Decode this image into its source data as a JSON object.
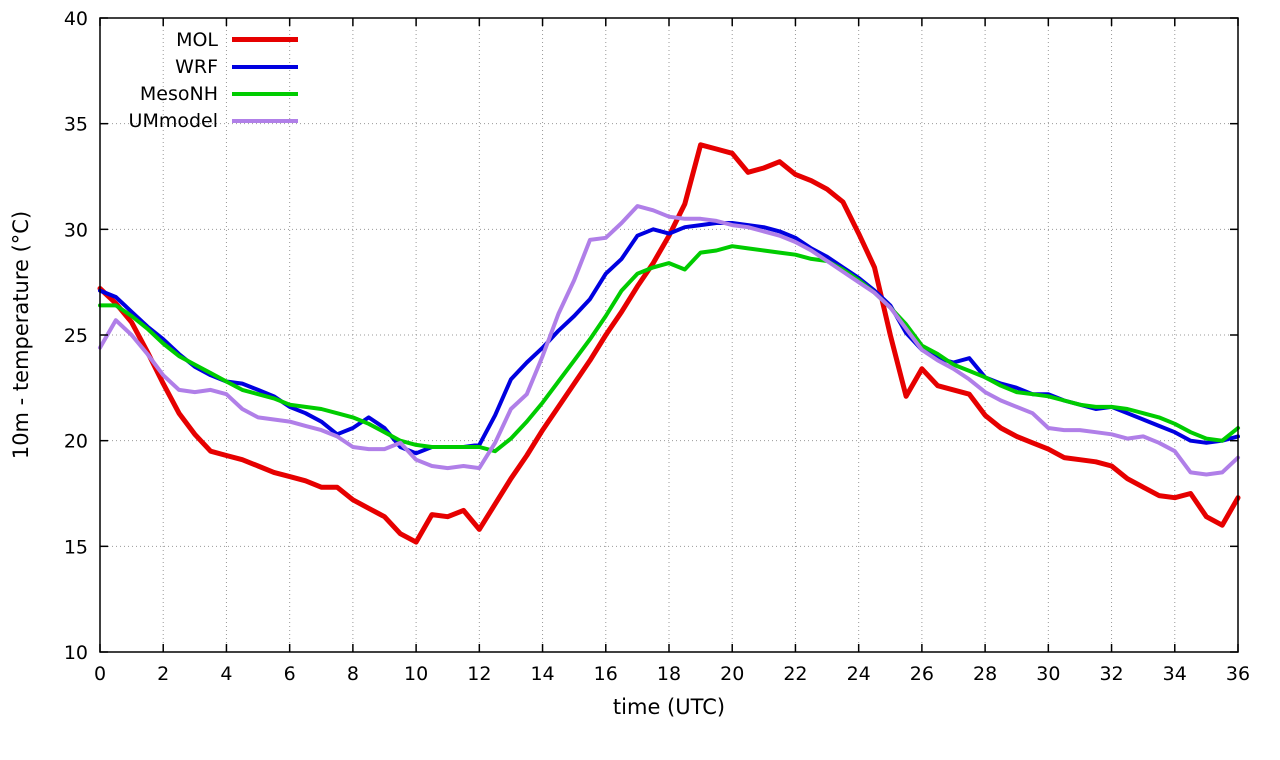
{
  "chart_data": {
    "type": "line",
    "title": "",
    "xlabel": "time (UTC)",
    "ylabel": "10m - temperature (°C)",
    "xlim": [
      0,
      36
    ],
    "ylim": [
      10,
      40
    ],
    "xticks": [
      0,
      2,
      4,
      6,
      8,
      10,
      12,
      14,
      16,
      18,
      20,
      22,
      24,
      26,
      28,
      30,
      32,
      34,
      36
    ],
    "yticks": [
      10,
      15,
      20,
      25,
      30,
      35,
      40
    ],
    "grid": true,
    "grid_style": "dotted",
    "legend_position": "top-left",
    "x": [
      0,
      0.5,
      1,
      1.5,
      2,
      2.5,
      3,
      3.5,
      4,
      4.5,
      5,
      5.5,
      6,
      6.5,
      7,
      7.5,
      8,
      8.5,
      9,
      9.5,
      10,
      10.5,
      11,
      11.5,
      12,
      12.5,
      13,
      13.5,
      14,
      14.5,
      15,
      15.5,
      16,
      16.5,
      17,
      17.5,
      18,
      18.5,
      19,
      19.5,
      20,
      20.5,
      21,
      21.5,
      22,
      22.5,
      23,
      23.5,
      24,
      24.5,
      25,
      25.5,
      26,
      26.5,
      27,
      27.5,
      28,
      28.5,
      29,
      29.5,
      30,
      30.5,
      31,
      31.5,
      32,
      32.5,
      33,
      33.5,
      34,
      34.5,
      35,
      35.5,
      36
    ],
    "series": [
      {
        "name": "MOL",
        "color": "#e60000",
        "line_width": 5,
        "values": [
          27.2,
          26.5,
          25.6,
          24.2,
          22.7,
          21.3,
          20.3,
          19.5,
          19.3,
          19.1,
          18.8,
          18.5,
          18.3,
          18.1,
          17.8,
          17.8,
          17.2,
          16.8,
          16.4,
          15.6,
          15.2,
          16.5,
          16.4,
          16.7,
          15.8,
          17.0,
          18.2,
          19.3,
          20.5,
          21.6,
          22.7,
          23.8,
          25.0,
          26.1,
          27.3,
          28.4,
          29.7,
          31.2,
          34.0,
          33.8,
          33.6,
          32.7,
          32.9,
          33.2,
          32.6,
          32.3,
          31.9,
          31.3,
          29.8,
          28.2,
          25.0,
          22.1,
          23.4,
          22.6,
          22.4,
          22.2,
          21.2,
          20.6,
          20.2,
          19.9,
          19.6,
          19.2,
          19.1,
          19.0,
          18.8,
          18.2,
          17.8,
          17.4,
          17.3,
          17.5,
          16.4,
          16.0,
          17.3
        ]
      },
      {
        "name": "WRF",
        "color": "#0000e0",
        "line_width": 4,
        "values": [
          27.1,
          26.8,
          26.1,
          25.4,
          24.8,
          24.1,
          23.5,
          23.1,
          22.8,
          22.7,
          22.4,
          22.1,
          21.6,
          21.3,
          20.9,
          20.3,
          20.6,
          21.1,
          20.6,
          19.7,
          19.4,
          19.7,
          19.7,
          19.7,
          19.8,
          21.2,
          22.9,
          23.7,
          24.4,
          25.2,
          25.9,
          26.7,
          27.9,
          28.6,
          29.7,
          30.0,
          29.8,
          30.1,
          30.2,
          30.3,
          30.3,
          30.2,
          30.1,
          29.9,
          29.6,
          29.1,
          28.7,
          28.2,
          27.7,
          27.1,
          26.4,
          25.1,
          24.3,
          23.9,
          23.7,
          23.9,
          23.0,
          22.7,
          22.5,
          22.2,
          22.2,
          21.9,
          21.7,
          21.5,
          21.6,
          21.3,
          21.0,
          20.7,
          20.4,
          20.0,
          19.9,
          20.0,
          20.2
        ]
      },
      {
        "name": "MesoNH",
        "color": "#00cc00",
        "line_width": 4,
        "values": [
          26.4,
          26.4,
          25.9,
          25.3,
          24.6,
          24.0,
          23.6,
          23.2,
          22.8,
          22.4,
          22.2,
          22.0,
          21.7,
          21.6,
          21.5,
          21.3,
          21.1,
          20.8,
          20.4,
          20.0,
          19.8,
          19.7,
          19.7,
          19.7,
          19.7,
          19.5,
          20.1,
          20.9,
          21.8,
          22.8,
          23.8,
          24.8,
          25.9,
          27.1,
          27.9,
          28.2,
          28.4,
          28.1,
          28.9,
          29.0,
          29.2,
          29.1,
          29.0,
          28.9,
          28.8,
          28.6,
          28.5,
          28.1,
          27.6,
          27.0,
          26.3,
          25.5,
          24.5,
          24.1,
          23.6,
          23.3,
          23.0,
          22.6,
          22.3,
          22.2,
          22.1,
          21.9,
          21.7,
          21.6,
          21.6,
          21.5,
          21.3,
          21.1,
          20.8,
          20.4,
          20.1,
          20.0,
          20.6
        ]
      },
      {
        "name": "UMmodel",
        "color": "#b07fe8",
        "line_width": 4,
        "values": [
          24.4,
          25.7,
          25.0,
          24.1,
          23.1,
          22.4,
          22.3,
          22.4,
          22.2,
          21.5,
          21.1,
          21.0,
          20.9,
          20.7,
          20.5,
          20.2,
          19.7,
          19.6,
          19.6,
          19.9,
          19.1,
          18.8,
          18.7,
          18.8,
          18.7,
          19.9,
          21.5,
          22.2,
          24.0,
          26.0,
          27.6,
          29.5,
          29.6,
          30.3,
          31.1,
          30.9,
          30.6,
          30.5,
          30.5,
          30.4,
          30.2,
          30.1,
          29.9,
          29.7,
          29.4,
          29.0,
          28.5,
          28.0,
          27.5,
          27.0,
          26.3,
          25.3,
          24.3,
          23.8,
          23.4,
          22.9,
          22.3,
          21.9,
          21.6,
          21.3,
          20.6,
          20.5,
          20.5,
          20.4,
          20.3,
          20.1,
          20.2,
          19.9,
          19.5,
          18.5,
          18.4,
          18.5,
          19.2
        ]
      }
    ],
    "axis_color": "#000000",
    "grid_color": "#999999"
  }
}
